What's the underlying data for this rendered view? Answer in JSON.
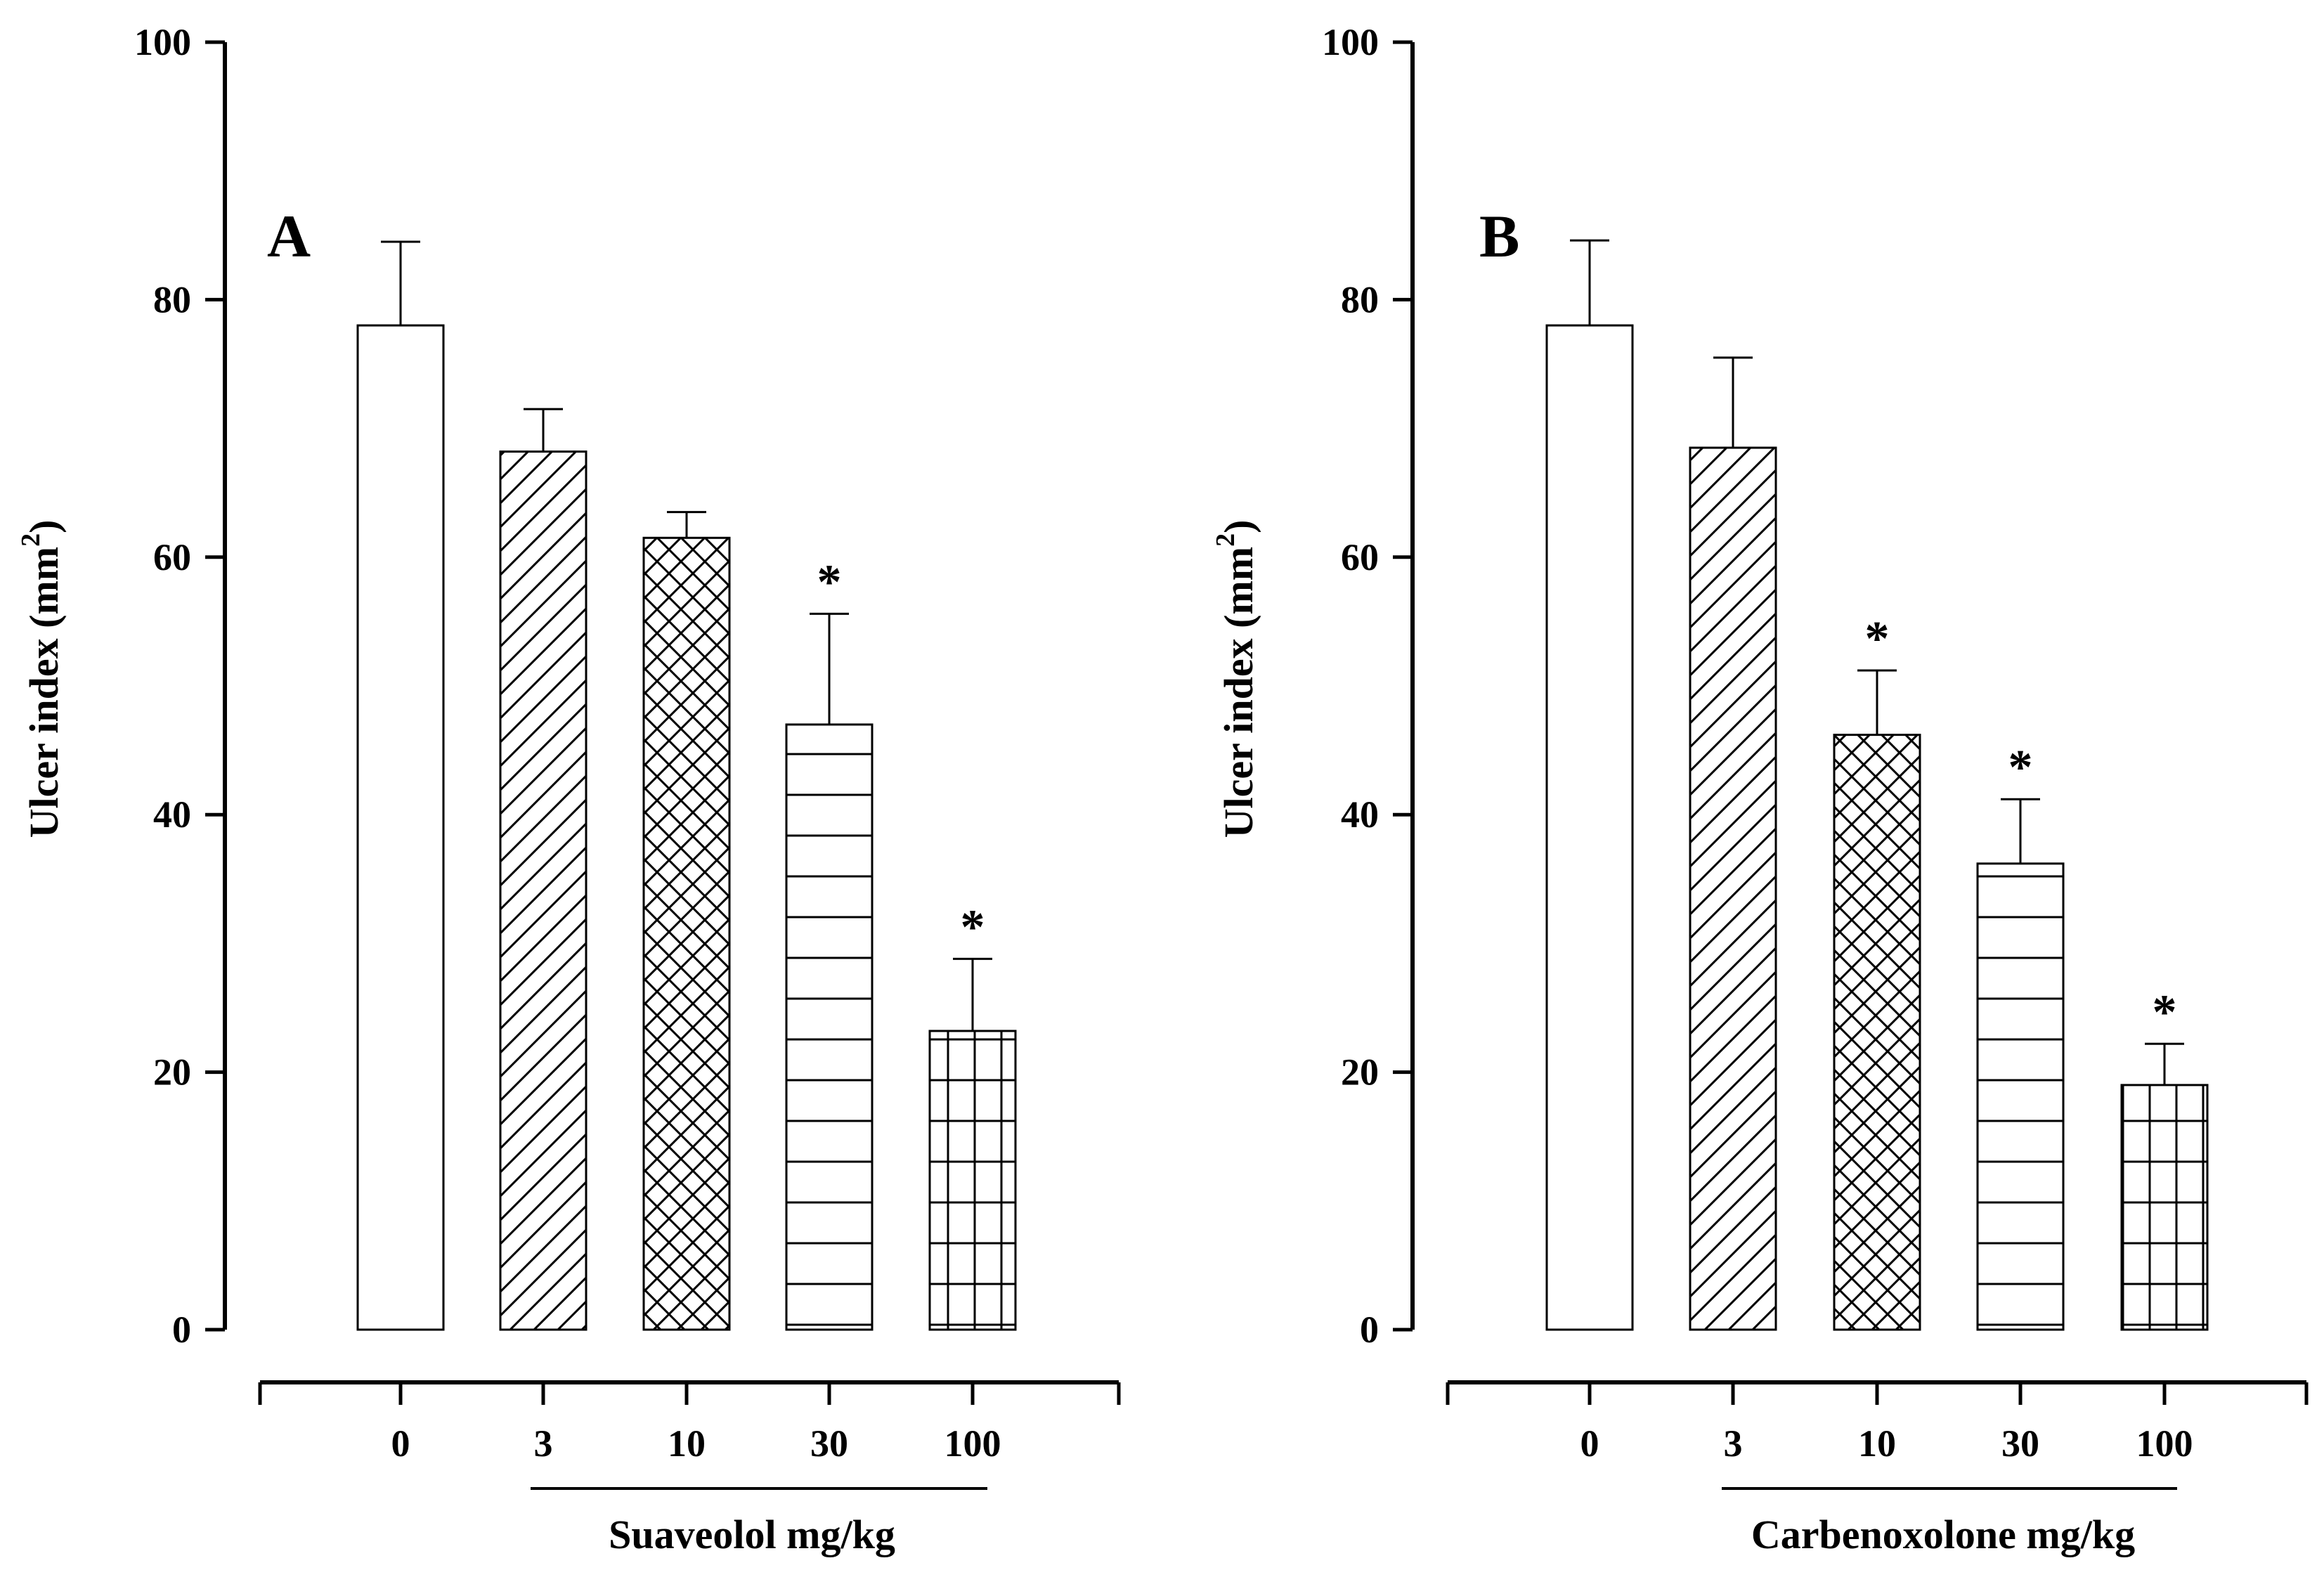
{
  "chart_data": [
    {
      "type": "bar",
      "panel_label": "A",
      "ylabel": "Ulcer index (mm",
      "ylabel_superscript": "2",
      "ylabel_close": ")",
      "xlabel": "Suaveolol mg/kg",
      "ylim": [
        0,
        100
      ],
      "yticks": [
        "0",
        "20",
        "40",
        "60",
        "80",
        "100"
      ],
      "categories": [
        "0",
        "3",
        "10",
        "30",
        "100"
      ],
      "values": [
        78.0,
        68.2,
        61.5,
        47.0,
        23.2
      ],
      "errors": [
        6.5,
        3.3,
        2.0,
        8.6,
        5.6
      ],
      "significant": [
        "",
        "",
        "",
        "*",
        "*"
      ],
      "patterns": [
        "none",
        "diagonal",
        "crosshatch",
        "horizontal",
        "grid"
      ]
    },
    {
      "type": "bar",
      "panel_label": "B",
      "ylabel": "Ulcer index (mm",
      "ylabel_superscript": "2",
      "ylabel_close": ")",
      "xlabel": "Carbenoxolone mg/kg",
      "ylim": [
        0,
        100
      ],
      "yticks": [
        "0",
        "20",
        "40",
        "60",
        "80",
        "100"
      ],
      "categories": [
        "0",
        "3",
        "10",
        "30",
        "100"
      ],
      "values": [
        78.0,
        68.5,
        46.2,
        36.2,
        19.0
      ],
      "errors": [
        6.6,
        7.0,
        5.0,
        5.0,
        3.2
      ],
      "significant": [
        "",
        "",
        "*",
        "*",
        "*"
      ],
      "patterns": [
        "none",
        "diagonal",
        "crosshatch",
        "horizontal",
        "grid"
      ]
    }
  ]
}
